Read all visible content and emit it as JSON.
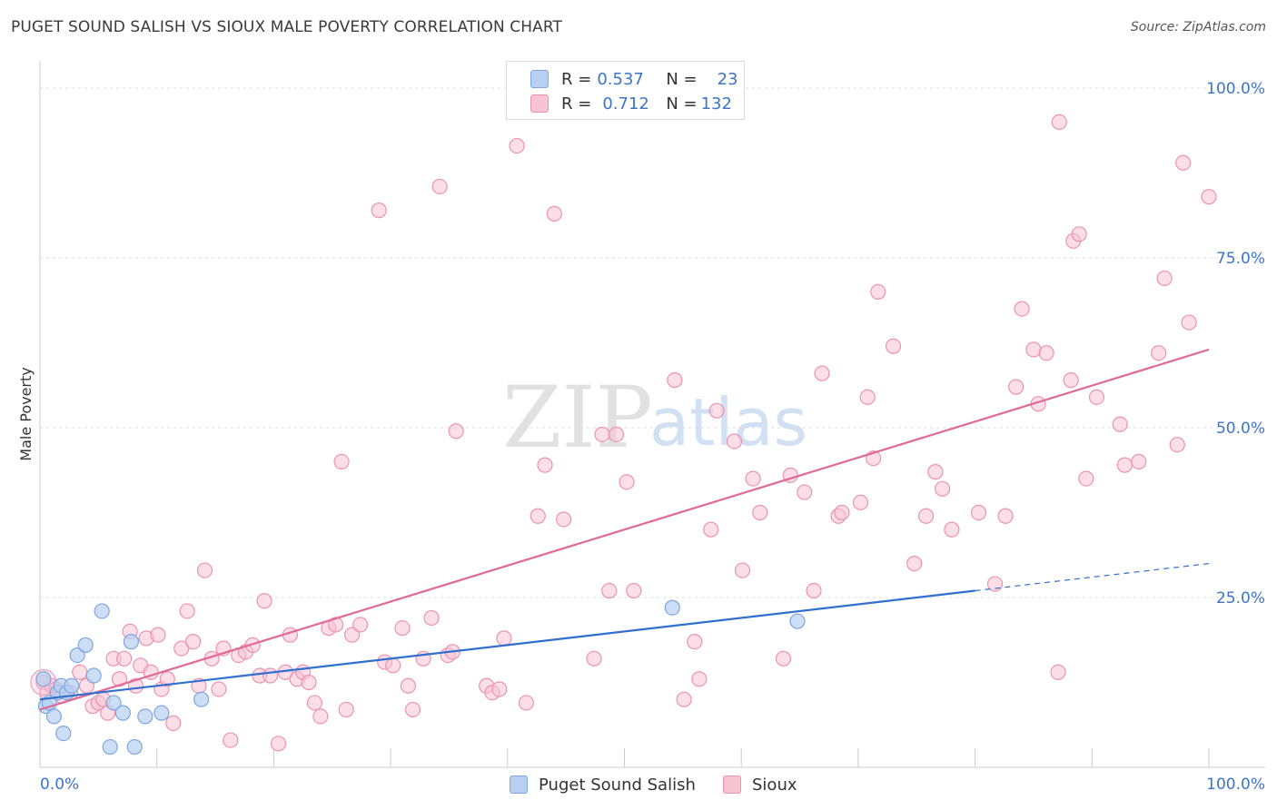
{
  "header": {
    "title": "PUGET SOUND SALISH VS SIOUX MALE POVERTY CORRELATION CHART",
    "source": "Source: ZipAtlas.com"
  },
  "legend": {
    "rows": [
      {
        "r_label": "R = ",
        "r_value": "0.537",
        "n_label": "N = ",
        "n_value": "23"
      },
      {
        "r_label": "R = ",
        "r_value": "0.712",
        "n_label": "N = ",
        "n_value": "132"
      }
    ]
  },
  "watermark": {
    "zip": "ZIP",
    "atlas": "atlas"
  },
  "colors": {
    "salish_fill": "#b7d0f2",
    "salish_stroke": "#7ea6e0",
    "salish_line": "#2f6fcf",
    "sioux_fill": "#f8c3d3",
    "sioux_stroke": "#ec93b0",
    "sioux_line": "#e06a96",
    "tick_label": "#3d74c9",
    "grid": "#dddddd"
  },
  "chart_data": {
    "type": "scatter",
    "ylabel": "Male Poverty",
    "xlabel": "",
    "x_tick_labels": [
      "0.0%",
      "100.0%"
    ],
    "y_tick_labels": [
      "25.0%",
      "50.0%",
      "75.0%",
      "100.0%"
    ],
    "y_ticks": [
      25,
      50,
      75,
      100
    ],
    "xlim": [
      0,
      100
    ],
    "ylim": [
      0,
      102
    ],
    "series": [
      {
        "name": "Puget Sound Salish",
        "r": 0.537,
        "n": 23,
        "trend": {
          "x0": 0,
          "y0": 10.0,
          "x1": 80,
          "y1": 26.0,
          "dash_to_x": 100,
          "dash_to_y": 30.0
        },
        "points": [
          [
            0.3,
            13.0
          ],
          [
            0.5,
            9.0
          ],
          [
            0.8,
            9.5
          ],
          [
            1.2,
            7.5
          ],
          [
            1.5,
            11.0
          ],
          [
            1.8,
            12.0
          ],
          [
            2.0,
            5.0
          ],
          [
            2.3,
            11.0
          ],
          [
            2.7,
            12.0
          ],
          [
            3.2,
            16.5
          ],
          [
            3.9,
            18.0
          ],
          [
            4.6,
            13.5
          ],
          [
            5.3,
            23.0
          ],
          [
            6.0,
            3.0
          ],
          [
            6.3,
            9.5
          ],
          [
            7.1,
            8.0
          ],
          [
            7.8,
            18.5
          ],
          [
            8.1,
            3.0
          ],
          [
            9.0,
            7.5
          ],
          [
            10.4,
            8.0
          ],
          [
            13.8,
            10.0
          ],
          [
            54.1,
            23.5
          ],
          [
            64.8,
            21.5
          ]
        ]
      },
      {
        "name": "Sioux",
        "r": 0.712,
        "n": 132,
        "trend": {
          "x0": 0,
          "y0": 8.5,
          "x1": 100,
          "y1": 61.5
        },
        "points": [
          [
            0.3,
            12.5
          ],
          [
            0.6,
            11.0
          ],
          [
            1.0,
            12.0
          ],
          [
            1.4,
            11.5
          ],
          [
            1.9,
            10.5
          ],
          [
            2.6,
            11.0
          ],
          [
            3.4,
            14.0
          ],
          [
            4.0,
            12.0
          ],
          [
            4.5,
            9.0
          ],
          [
            5.0,
            9.5
          ],
          [
            5.4,
            10.0
          ],
          [
            5.8,
            8.0
          ],
          [
            6.3,
            16.0
          ],
          [
            6.8,
            13.0
          ],
          [
            7.2,
            16.0
          ],
          [
            7.7,
            20.0
          ],
          [
            8.2,
            12.0
          ],
          [
            8.6,
            15.0
          ],
          [
            9.1,
            19.0
          ],
          [
            9.5,
            14.0
          ],
          [
            10.1,
            19.5
          ],
          [
            10.4,
            11.5
          ],
          [
            10.9,
            13.0
          ],
          [
            11.4,
            6.5
          ],
          [
            12.1,
            17.5
          ],
          [
            12.6,
            23.0
          ],
          [
            13.1,
            18.5
          ],
          [
            13.6,
            12.0
          ],
          [
            14.1,
            29.0
          ],
          [
            14.7,
            16.0
          ],
          [
            15.3,
            11.5
          ],
          [
            15.7,
            17.5
          ],
          [
            16.3,
            4.0
          ],
          [
            17.0,
            16.5
          ],
          [
            17.6,
            17.0
          ],
          [
            18.2,
            18.0
          ],
          [
            18.8,
            13.5
          ],
          [
            19.2,
            24.5
          ],
          [
            19.7,
            13.5
          ],
          [
            20.4,
            3.5
          ],
          [
            21.0,
            14.0
          ],
          [
            21.4,
            19.5
          ],
          [
            22.0,
            13.0
          ],
          [
            22.5,
            14.0
          ],
          [
            23.0,
            12.5
          ],
          [
            23.5,
            9.5
          ],
          [
            24.0,
            7.5
          ],
          [
            24.7,
            20.5
          ],
          [
            25.3,
            21.0
          ],
          [
            25.8,
            45.0
          ],
          [
            26.2,
            8.5
          ],
          [
            26.7,
            19.5
          ],
          [
            27.4,
            21.0
          ],
          [
            29.0,
            82.0
          ],
          [
            29.5,
            15.5
          ],
          [
            30.2,
            15.0
          ],
          [
            31.0,
            20.5
          ],
          [
            31.5,
            12.0
          ],
          [
            31.9,
            8.5
          ],
          [
            32.8,
            16.0
          ],
          [
            33.5,
            22.0
          ],
          [
            34.2,
            85.5
          ],
          [
            34.9,
            16.5
          ],
          [
            35.3,
            17.0
          ],
          [
            35.6,
            49.5
          ],
          [
            38.2,
            12.0
          ],
          [
            38.7,
            11.0
          ],
          [
            39.3,
            11.5
          ],
          [
            39.7,
            19.0
          ],
          [
            40.8,
            91.5
          ],
          [
            41.6,
            9.5
          ],
          [
            42.6,
            37.0
          ],
          [
            43.2,
            44.5
          ],
          [
            44.0,
            81.5
          ],
          [
            44.8,
            36.5
          ],
          [
            47.4,
            16.0
          ],
          [
            48.1,
            49.0
          ],
          [
            48.7,
            26.0
          ],
          [
            49.3,
            49.0
          ],
          [
            50.2,
            42.0
          ],
          [
            50.8,
            26.0
          ],
          [
            54.3,
            57.0
          ],
          [
            55.1,
            10.0
          ],
          [
            56.0,
            18.5
          ],
          [
            56.4,
            13.0
          ],
          [
            57.4,
            35.0
          ],
          [
            57.9,
            52.5
          ],
          [
            59.4,
            48.0
          ],
          [
            60.1,
            29.0
          ],
          [
            61.0,
            42.5
          ],
          [
            61.6,
            37.5
          ],
          [
            63.6,
            16.0
          ],
          [
            64.2,
            43.0
          ],
          [
            65.4,
            40.5
          ],
          [
            66.2,
            26.0
          ],
          [
            66.9,
            58.0
          ],
          [
            68.3,
            37.0
          ],
          [
            68.6,
            37.5
          ],
          [
            70.2,
            39.0
          ],
          [
            70.8,
            54.5
          ],
          [
            71.3,
            45.5
          ],
          [
            71.7,
            70.0
          ],
          [
            73.0,
            62.0
          ],
          [
            74.8,
            30.0
          ],
          [
            75.8,
            37.0
          ],
          [
            76.6,
            43.5
          ],
          [
            77.2,
            41.0
          ],
          [
            78.0,
            35.0
          ],
          [
            80.3,
            37.5
          ],
          [
            81.7,
            27.0
          ],
          [
            82.6,
            37.0
          ],
          [
            83.5,
            56.0
          ],
          [
            84.0,
            67.5
          ],
          [
            85.0,
            61.5
          ],
          [
            85.4,
            53.5
          ],
          [
            86.1,
            61.0
          ],
          [
            87.1,
            14.0
          ],
          [
            87.2,
            95.0
          ],
          [
            88.2,
            57.0
          ],
          [
            88.4,
            77.5
          ],
          [
            88.9,
            78.5
          ],
          [
            89.5,
            42.5
          ],
          [
            90.4,
            54.5
          ],
          [
            92.4,
            50.5
          ],
          [
            92.8,
            44.5
          ],
          [
            94.0,
            45.0
          ],
          [
            95.7,
            61.0
          ],
          [
            96.2,
            72.0
          ],
          [
            97.3,
            47.5
          ],
          [
            97.8,
            89.0
          ],
          [
            98.3,
            65.5
          ],
          [
            100.0,
            84.0
          ]
        ]
      }
    ]
  },
  "bottom_legend": {
    "salish": "Puget Sound Salish",
    "sioux": "Sioux"
  }
}
